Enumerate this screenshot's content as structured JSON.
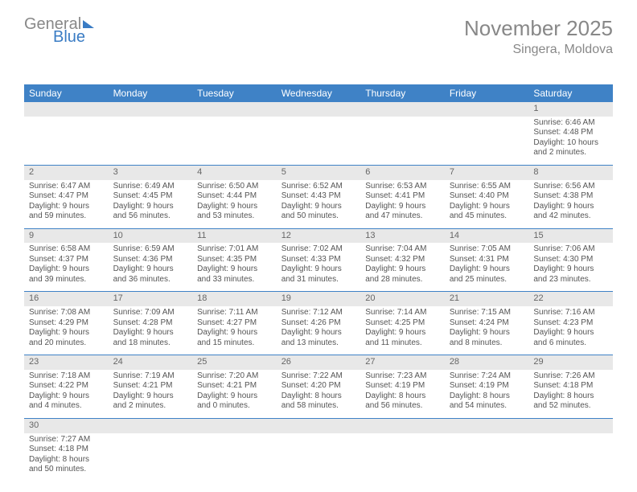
{
  "brand": {
    "part1": "General",
    "part2": "Blue"
  },
  "title": "November 2025",
  "location": "Singera, Moldova",
  "colors": {
    "header_bg": "#3f82c6",
    "header_fg": "#ffffff",
    "daynum_bg": "#e8e8e8",
    "divider": "#3f82c6",
    "text": "#555555",
    "title_color": "#888888",
    "brand_gray": "#888888",
    "brand_blue": "#3a7cc4"
  },
  "dayNames": [
    "Sunday",
    "Monday",
    "Tuesday",
    "Wednesday",
    "Thursday",
    "Friday",
    "Saturday"
  ],
  "weeks": [
    [
      null,
      null,
      null,
      null,
      null,
      null,
      {
        "n": "1",
        "sr": "Sunrise: 6:46 AM",
        "ss": "Sunset: 4:48 PM",
        "dl": "Daylight: 10 hours and 2 minutes."
      }
    ],
    [
      {
        "n": "2",
        "sr": "Sunrise: 6:47 AM",
        "ss": "Sunset: 4:47 PM",
        "dl": "Daylight: 9 hours and 59 minutes."
      },
      {
        "n": "3",
        "sr": "Sunrise: 6:49 AM",
        "ss": "Sunset: 4:45 PM",
        "dl": "Daylight: 9 hours and 56 minutes."
      },
      {
        "n": "4",
        "sr": "Sunrise: 6:50 AM",
        "ss": "Sunset: 4:44 PM",
        "dl": "Daylight: 9 hours and 53 minutes."
      },
      {
        "n": "5",
        "sr": "Sunrise: 6:52 AM",
        "ss": "Sunset: 4:43 PM",
        "dl": "Daylight: 9 hours and 50 minutes."
      },
      {
        "n": "6",
        "sr": "Sunrise: 6:53 AM",
        "ss": "Sunset: 4:41 PM",
        "dl": "Daylight: 9 hours and 47 minutes."
      },
      {
        "n": "7",
        "sr": "Sunrise: 6:55 AM",
        "ss": "Sunset: 4:40 PM",
        "dl": "Daylight: 9 hours and 45 minutes."
      },
      {
        "n": "8",
        "sr": "Sunrise: 6:56 AM",
        "ss": "Sunset: 4:38 PM",
        "dl": "Daylight: 9 hours and 42 minutes."
      }
    ],
    [
      {
        "n": "9",
        "sr": "Sunrise: 6:58 AM",
        "ss": "Sunset: 4:37 PM",
        "dl": "Daylight: 9 hours and 39 minutes."
      },
      {
        "n": "10",
        "sr": "Sunrise: 6:59 AM",
        "ss": "Sunset: 4:36 PM",
        "dl": "Daylight: 9 hours and 36 minutes."
      },
      {
        "n": "11",
        "sr": "Sunrise: 7:01 AM",
        "ss": "Sunset: 4:35 PM",
        "dl": "Daylight: 9 hours and 33 minutes."
      },
      {
        "n": "12",
        "sr": "Sunrise: 7:02 AM",
        "ss": "Sunset: 4:33 PM",
        "dl": "Daylight: 9 hours and 31 minutes."
      },
      {
        "n": "13",
        "sr": "Sunrise: 7:04 AM",
        "ss": "Sunset: 4:32 PM",
        "dl": "Daylight: 9 hours and 28 minutes."
      },
      {
        "n": "14",
        "sr": "Sunrise: 7:05 AM",
        "ss": "Sunset: 4:31 PM",
        "dl": "Daylight: 9 hours and 25 minutes."
      },
      {
        "n": "15",
        "sr": "Sunrise: 7:06 AM",
        "ss": "Sunset: 4:30 PM",
        "dl": "Daylight: 9 hours and 23 minutes."
      }
    ],
    [
      {
        "n": "16",
        "sr": "Sunrise: 7:08 AM",
        "ss": "Sunset: 4:29 PM",
        "dl": "Daylight: 9 hours and 20 minutes."
      },
      {
        "n": "17",
        "sr": "Sunrise: 7:09 AM",
        "ss": "Sunset: 4:28 PM",
        "dl": "Daylight: 9 hours and 18 minutes."
      },
      {
        "n": "18",
        "sr": "Sunrise: 7:11 AM",
        "ss": "Sunset: 4:27 PM",
        "dl": "Daylight: 9 hours and 15 minutes."
      },
      {
        "n": "19",
        "sr": "Sunrise: 7:12 AM",
        "ss": "Sunset: 4:26 PM",
        "dl": "Daylight: 9 hours and 13 minutes."
      },
      {
        "n": "20",
        "sr": "Sunrise: 7:14 AM",
        "ss": "Sunset: 4:25 PM",
        "dl": "Daylight: 9 hours and 11 minutes."
      },
      {
        "n": "21",
        "sr": "Sunrise: 7:15 AM",
        "ss": "Sunset: 4:24 PM",
        "dl": "Daylight: 9 hours and 8 minutes."
      },
      {
        "n": "22",
        "sr": "Sunrise: 7:16 AM",
        "ss": "Sunset: 4:23 PM",
        "dl": "Daylight: 9 hours and 6 minutes."
      }
    ],
    [
      {
        "n": "23",
        "sr": "Sunrise: 7:18 AM",
        "ss": "Sunset: 4:22 PM",
        "dl": "Daylight: 9 hours and 4 minutes."
      },
      {
        "n": "24",
        "sr": "Sunrise: 7:19 AM",
        "ss": "Sunset: 4:21 PM",
        "dl": "Daylight: 9 hours and 2 minutes."
      },
      {
        "n": "25",
        "sr": "Sunrise: 7:20 AM",
        "ss": "Sunset: 4:21 PM",
        "dl": "Daylight: 9 hours and 0 minutes."
      },
      {
        "n": "26",
        "sr": "Sunrise: 7:22 AM",
        "ss": "Sunset: 4:20 PM",
        "dl": "Daylight: 8 hours and 58 minutes."
      },
      {
        "n": "27",
        "sr": "Sunrise: 7:23 AM",
        "ss": "Sunset: 4:19 PM",
        "dl": "Daylight: 8 hours and 56 minutes."
      },
      {
        "n": "28",
        "sr": "Sunrise: 7:24 AM",
        "ss": "Sunset: 4:19 PM",
        "dl": "Daylight: 8 hours and 54 minutes."
      },
      {
        "n": "29",
        "sr": "Sunrise: 7:26 AM",
        "ss": "Sunset: 4:18 PM",
        "dl": "Daylight: 8 hours and 52 minutes."
      }
    ],
    [
      {
        "n": "30",
        "sr": "Sunrise: 7:27 AM",
        "ss": "Sunset: 4:18 PM",
        "dl": "Daylight: 8 hours and 50 minutes."
      },
      null,
      null,
      null,
      null,
      null,
      null
    ]
  ]
}
